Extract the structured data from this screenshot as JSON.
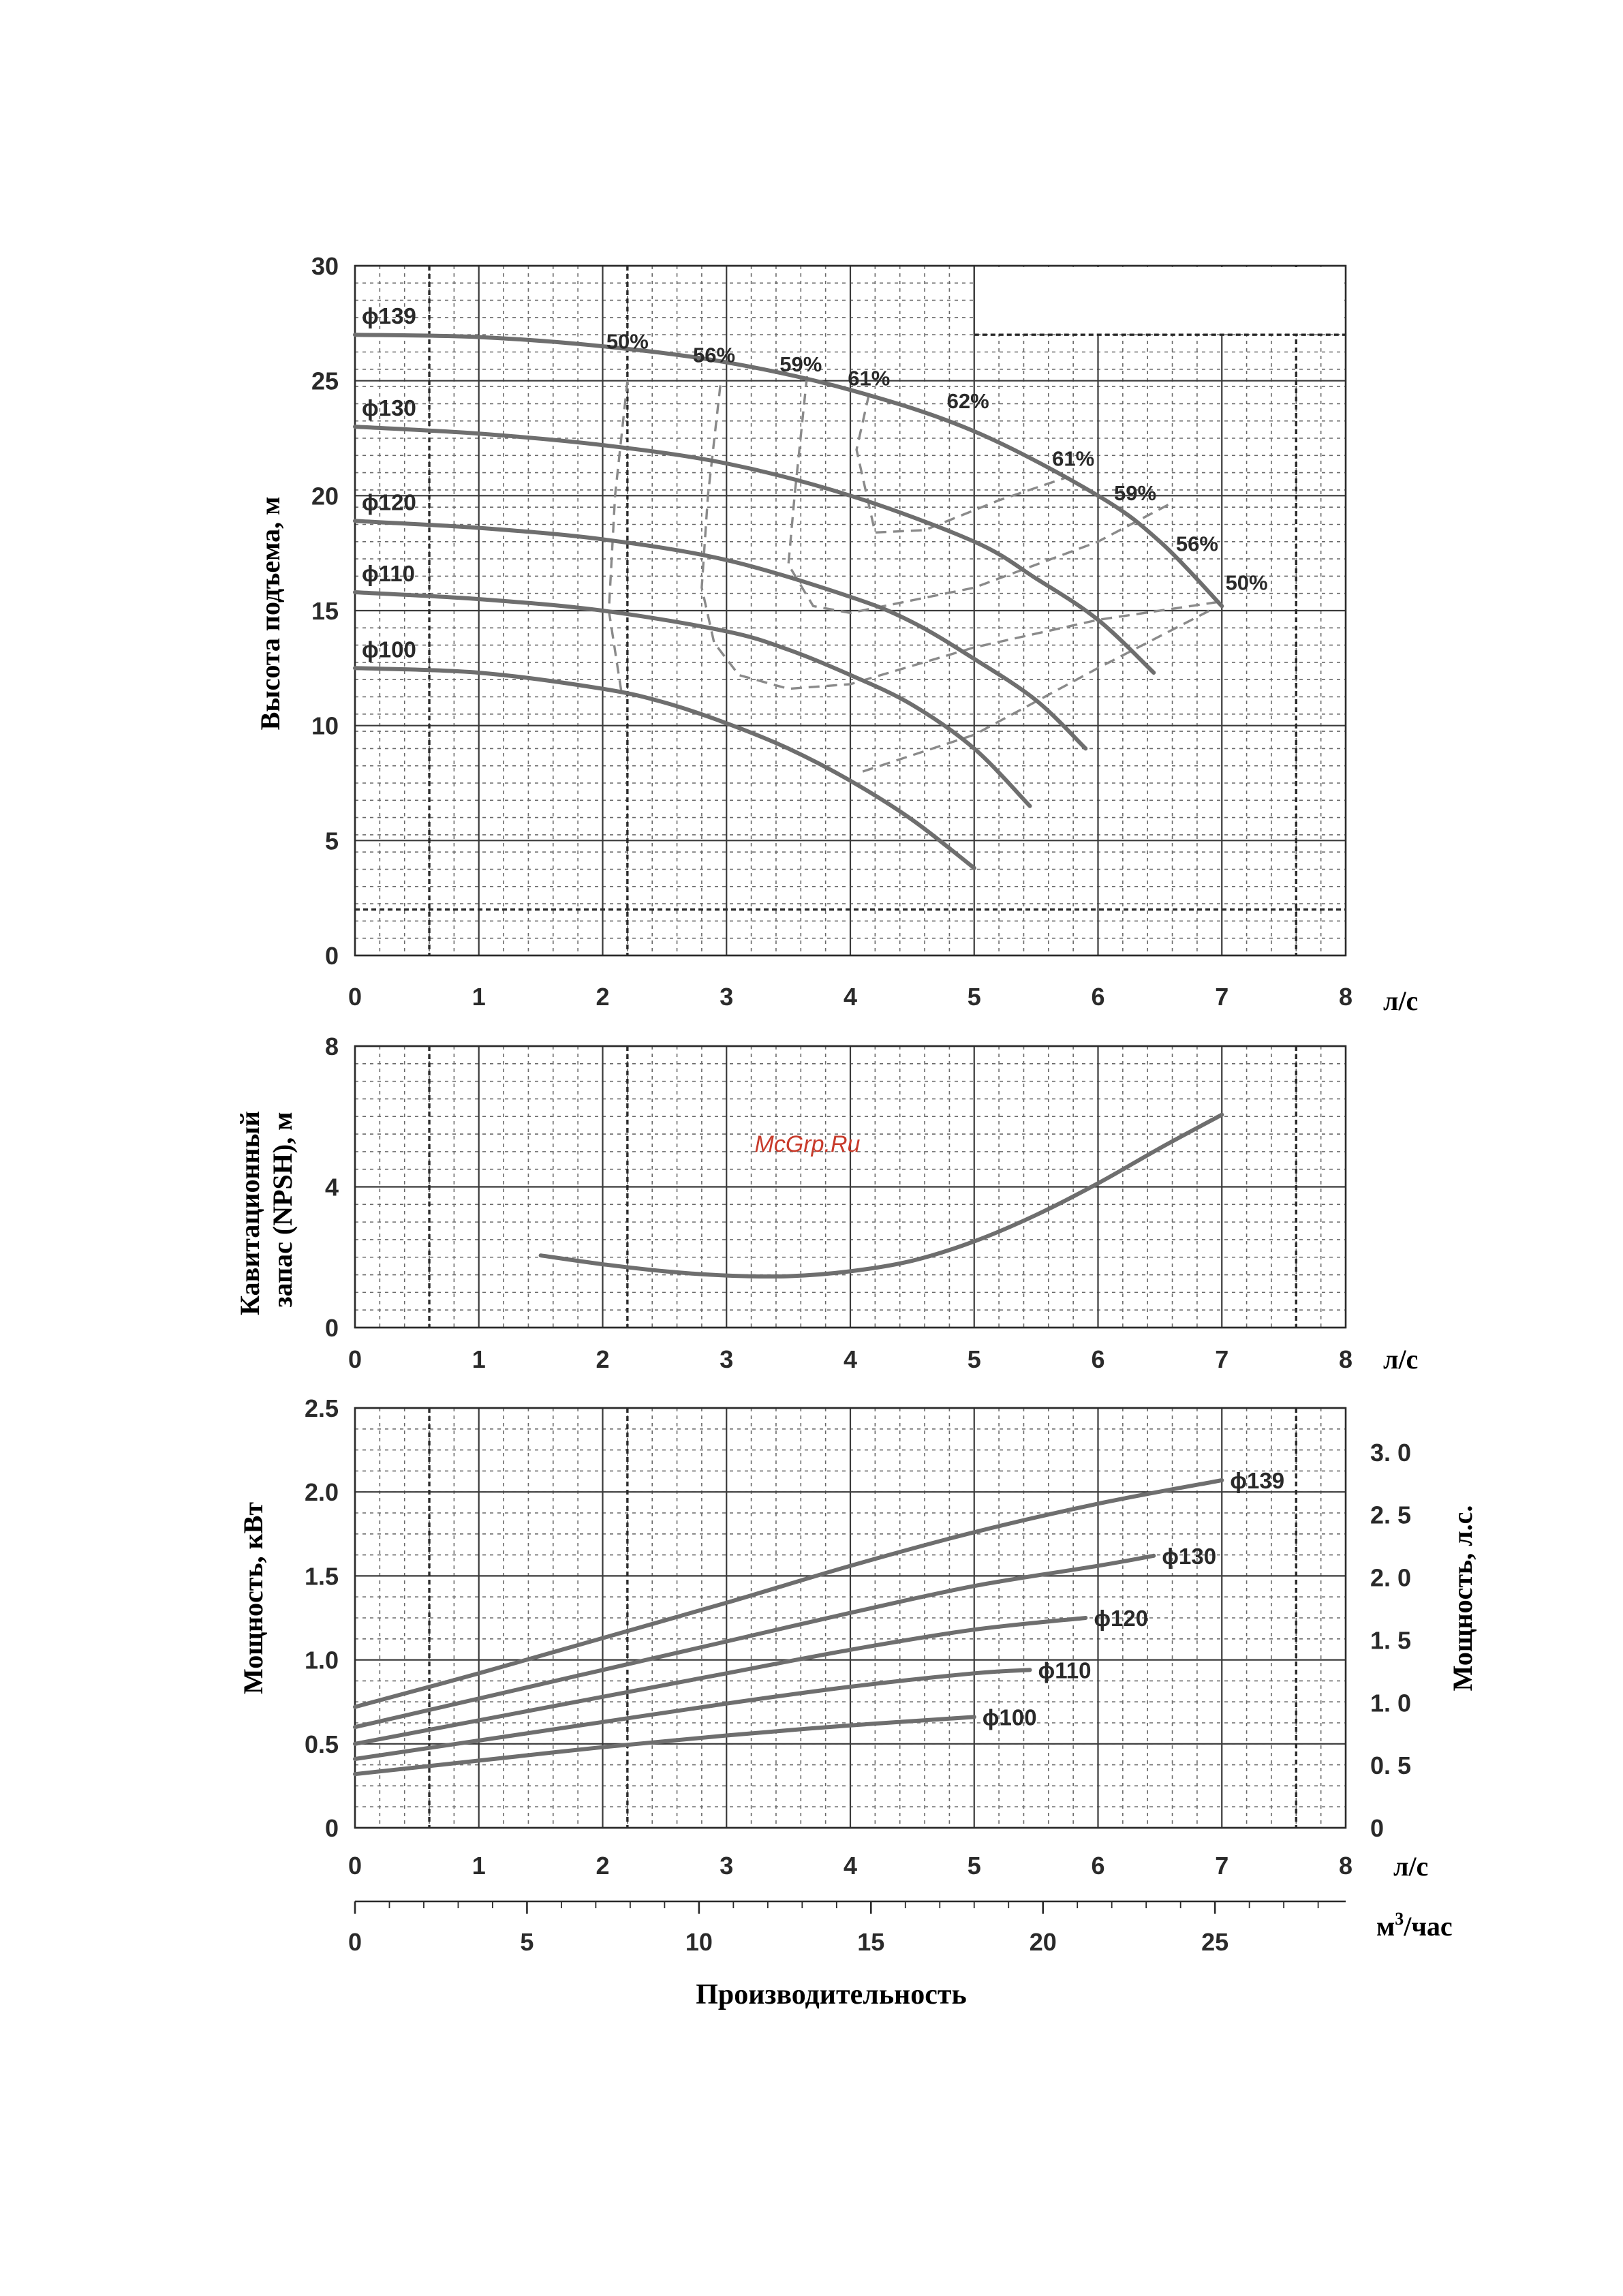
{
  "chart_data": [
    {
      "type": "line",
      "id": "head",
      "ylabel": "Высота подъема, м",
      "xunit": "л/с",
      "xlim": [
        0,
        8
      ],
      "ylim": [
        0,
        30
      ],
      "xticks": [
        "0",
        "1",
        "2",
        "3",
        "4",
        "5",
        "6",
        "7",
        "8"
      ],
      "yticks": [
        "0",
        "5",
        "10",
        "15",
        "20",
        "25",
        "30"
      ],
      "series": [
        {
          "name": "ϕ139",
          "points": [
            [
              0,
              27.0
            ],
            [
              1,
              26.9
            ],
            [
              2,
              26.5
            ],
            [
              3,
              25.8
            ],
            [
              4,
              24.6
            ],
            [
              5,
              22.8
            ],
            [
              6,
              20.0
            ],
            [
              6.5,
              18.0
            ],
            [
              7,
              15.2
            ]
          ]
        },
        {
          "name": "ϕ130",
          "points": [
            [
              0,
              23.0
            ],
            [
              1,
              22.7
            ],
            [
              2,
              22.2
            ],
            [
              3,
              21.4
            ],
            [
              4,
              20.0
            ],
            [
              5,
              18.0
            ],
            [
              5.5,
              16.4
            ],
            [
              6,
              14.6
            ],
            [
              6.45,
              12.3
            ]
          ]
        },
        {
          "name": "ϕ120",
          "points": [
            [
              0,
              18.9
            ],
            [
              1,
              18.6
            ],
            [
              2,
              18.1
            ],
            [
              3,
              17.2
            ],
            [
              4,
              15.6
            ],
            [
              4.5,
              14.5
            ],
            [
              5,
              12.9
            ],
            [
              5.5,
              11.1
            ],
            [
              5.9,
              9.0
            ]
          ]
        },
        {
          "name": "ϕ110",
          "points": [
            [
              0,
              15.8
            ],
            [
              1,
              15.5
            ],
            [
              2,
              15.0
            ],
            [
              3,
              14.1
            ],
            [
              3.5,
              13.3
            ],
            [
              4,
              12.2
            ],
            [
              4.5,
              10.9
            ],
            [
              5,
              9.0
            ],
            [
              5.45,
              6.5
            ]
          ]
        },
        {
          "name": "ϕ100",
          "points": [
            [
              0,
              12.5
            ],
            [
              1,
              12.3
            ],
            [
              2,
              11.6
            ],
            [
              2.5,
              11.0
            ],
            [
              3,
              10.1
            ],
            [
              3.5,
              9.0
            ],
            [
              4,
              7.6
            ],
            [
              4.5,
              5.9
            ],
            [
              5,
              3.8
            ]
          ]
        }
      ],
      "efficiency": [
        {
          "label": "50%",
          "points": [
            [
              2.2,
              25.0
            ],
            [
              2.1,
              20.0
            ],
            [
              2.05,
              15.0
            ],
            [
              2.15,
              11.5
            ]
          ]
        },
        {
          "label": "56%",
          "points": [
            [
              2.95,
              24.8
            ],
            [
              2.85,
              20.0
            ],
            [
              2.8,
              16.0
            ],
            [
              2.9,
              13.6
            ],
            [
              3.1,
              12.2
            ],
            [
              3.5,
              11.6
            ],
            [
              4.0,
              11.8
            ],
            [
              5.0,
              13.4
            ],
            [
              6.0,
              14.6
            ],
            [
              7.0,
              15.4
            ]
          ]
        },
        {
          "label": "59%",
          "points": [
            [
              3.65,
              25.2
            ],
            [
              3.55,
              20.0
            ],
            [
              3.5,
              17.0
            ],
            [
              3.7,
              15.2
            ],
            [
              4.0,
              14.9
            ],
            [
              5.0,
              16.0
            ],
            [
              6.0,
              18.0
            ],
            [
              6.6,
              19.7
            ]
          ]
        },
        {
          "label": "61%",
          "points": [
            [
              4.15,
              24.4
            ],
            [
              4.05,
              22.0
            ],
            [
              4.2,
              18.4
            ],
            [
              4.6,
              18.5
            ],
            [
              5.2,
              19.8
            ],
            [
              5.75,
              20.8
            ]
          ]
        },
        {
          "label": "50%",
          "points": [
            [
              4.1,
              8.0
            ],
            [
              5.0,
              9.6
            ],
            [
              6.0,
              12.5
            ],
            [
              6.9,
              15.0
            ]
          ]
        }
      ],
      "efficiency_labels": [
        {
          "label": "50%",
          "x": 2.2,
          "y": 26.4
        },
        {
          "label": "56%",
          "x": 2.9,
          "y": 25.8
        },
        {
          "label": "59%",
          "x": 3.6,
          "y": 25.4
        },
        {
          "label": "61%",
          "x": 4.15,
          "y": 24.8
        },
        {
          "label": "62%",
          "x": 4.95,
          "y": 23.8
        },
        {
          "label": "61%",
          "x": 5.8,
          "y": 21.3
        },
        {
          "label": "59%",
          "x": 6.3,
          "y": 19.8
        },
        {
          "label": "56%",
          "x": 6.8,
          "y": 17.6
        },
        {
          "label": "50%",
          "x": 7.2,
          "y": 15.9
        }
      ],
      "grid": true
    },
    {
      "type": "line",
      "id": "npsh",
      "ylabel": "Кавитационный запас (NPSH), м",
      "xunit": "л/с",
      "xlim": [
        0,
        8
      ],
      "ylim": [
        0,
        8
      ],
      "xticks": [
        "0",
        "1",
        "2",
        "3",
        "4",
        "5",
        "6",
        "7",
        "8"
      ],
      "yticks": [
        "0",
        "4",
        "8"
      ],
      "series": [
        {
          "name": "",
          "points": [
            [
              1.5,
              2.05
            ],
            [
              2,
              1.8
            ],
            [
              2.5,
              1.6
            ],
            [
              3,
              1.48
            ],
            [
              3.5,
              1.46
            ],
            [
              4,
              1.6
            ],
            [
              4.5,
              1.9
            ],
            [
              5,
              2.45
            ],
            [
              5.5,
              3.2
            ],
            [
              6,
              4.1
            ],
            [
              6.5,
              5.1
            ],
            [
              7,
              6.05
            ]
          ]
        }
      ],
      "grid": true
    },
    {
      "type": "line",
      "id": "power",
      "ylabel": "Мощность, кВт",
      "ylabel_right": "Мощность, л.с.",
      "xunit": "л/с",
      "xlim": [
        0,
        8
      ],
      "ylim": [
        0,
        2.5
      ],
      "xticks": [
        "0",
        "1",
        "2",
        "3",
        "4",
        "5",
        "6",
        "7",
        "8"
      ],
      "yticks": [
        "0",
        "0.5",
        "1.0",
        "1.5",
        "2.0",
        "2.5"
      ],
      "yticks_right": [
        "0",
        "0. 5",
        "1. 0",
        "1. 5",
        "2. 0",
        "2. 5",
        "3. 0"
      ],
      "series": [
        {
          "name": "ϕ139",
          "points": [
            [
              0,
              0.72
            ],
            [
              1,
              0.92
            ],
            [
              2,
              1.13
            ],
            [
              3,
              1.34
            ],
            [
              4,
              1.56
            ],
            [
              5,
              1.76
            ],
            [
              6,
              1.93
            ],
            [
              7,
              2.07
            ]
          ]
        },
        {
          "name": "ϕ130",
          "points": [
            [
              0,
              0.6
            ],
            [
              1,
              0.77
            ],
            [
              2,
              0.94
            ],
            [
              3,
              1.11
            ],
            [
              4,
              1.28
            ],
            [
              5,
              1.44
            ],
            [
              6,
              1.56
            ],
            [
              6.45,
              1.62
            ]
          ]
        },
        {
          "name": "ϕ120",
          "points": [
            [
              0,
              0.5
            ],
            [
              1,
              0.64
            ],
            [
              2,
              0.78
            ],
            [
              3,
              0.92
            ],
            [
              4,
              1.06
            ],
            [
              5,
              1.18
            ],
            [
              5.9,
              1.25
            ]
          ]
        },
        {
          "name": "ϕ110",
          "points": [
            [
              0,
              0.41
            ],
            [
              1,
              0.52
            ],
            [
              2,
              0.63
            ],
            [
              3,
              0.74
            ],
            [
              4,
              0.84
            ],
            [
              5,
              0.92
            ],
            [
              5.45,
              0.94
            ]
          ]
        },
        {
          "name": "ϕ100",
          "points": [
            [
              0,
              0.32
            ],
            [
              1,
              0.4
            ],
            [
              2,
              0.48
            ],
            [
              3,
              0.55
            ],
            [
              4,
              0.61
            ],
            [
              5,
              0.66
            ]
          ]
        }
      ],
      "grid": true
    }
  ],
  "secondary_axis": {
    "unit_html": "м³/час",
    "unit_base": "м",
    "unit_sup": "3",
    "unit_tail": "/час",
    "max": 28.8,
    "ticks": [
      {
        "value": 0,
        "label": "0"
      },
      {
        "value": 5,
        "label": "5"
      },
      {
        "value": 10,
        "label": "10"
      },
      {
        "value": 15,
        "label": "15"
      },
      {
        "value": 20,
        "label": "20"
      },
      {
        "value": 25,
        "label": "25"
      }
    ]
  },
  "xlabel": "Производительность",
  "watermark": "McGrp.Ru"
}
